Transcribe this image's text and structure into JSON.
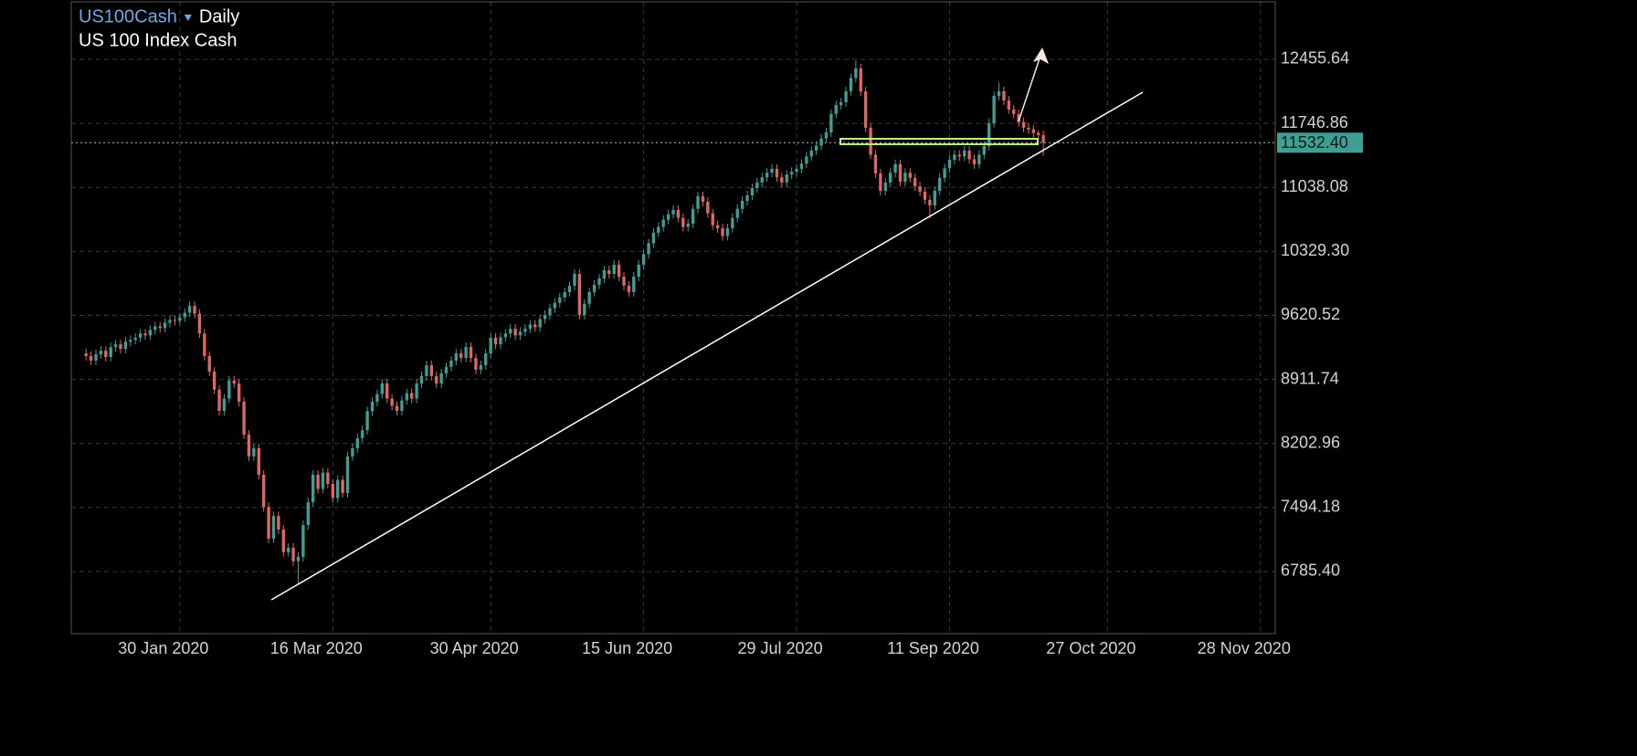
{
  "chart_data": {
    "type": "candlestick",
    "title": "US100Cash",
    "timeframe": "Daily",
    "subtitle": "US 100 Index Cash",
    "colors": {
      "up": "#3f9f94",
      "down": "#e06666"
    },
    "grid": true,
    "xlim": [
      -3,
      241
    ],
    "ylim": [
      6098,
      13092
    ],
    "xticks": [
      {
        "value": 19,
        "label": "30 Jan 2020"
      },
      {
        "value": 50,
        "label": "16 Mar 2020"
      },
      {
        "value": 82,
        "label": "30 Apr 2020"
      },
      {
        "value": 113,
        "label": "15 Jun 2020"
      },
      {
        "value": 144,
        "label": "29 Jul 2020"
      },
      {
        "value": 175,
        "label": "11 Sep 2020"
      },
      {
        "value": 207,
        "label": "27 Oct 2020"
      },
      {
        "value": 238,
        "label": "28 Nov 2020"
      }
    ],
    "yticks": [
      {
        "value": 6785.4,
        "label": "6785.40"
      },
      7494.18,
      8202.96,
      8911.74,
      9620.52,
      {
        "value": 10329.3,
        "label": "10329.30"
      },
      11038.08,
      11746.86,
      12455.64
    ],
    "current_price": {
      "value": 11532.4,
      "label": "11532.40"
    },
    "open": [
      9200,
      9171,
      9120,
      9190,
      9230,
      9160,
      9270,
      9300,
      9250,
      9330,
      9350,
      9374,
      9420,
      9400,
      9460,
      9500,
      9480,
      9540,
      9570,
      9560,
      9600,
      9650,
      9727,
      9640,
      9420,
      9171,
      9000,
      8800,
      8565,
      8700,
      8900,
      8868,
      8666,
      8300,
      8060,
      8150,
      7857,
      7500,
      7150,
      7400,
      7251,
      7000,
      7049,
      6900,
      6948,
      7300,
      7554,
      7857,
      7700,
      7880,
      7756,
      7600,
      7800,
      7655,
      8060,
      8150,
      8262,
      8350,
      8560,
      8666,
      8750,
      8868,
      8700,
      8620,
      8565,
      8680,
      8760,
      8700,
      8868,
      8950,
      9070,
      8950,
      8868,
      8980,
      9050,
      9120,
      9200,
      9150,
      9272,
      9150,
      9020,
      9070,
      9200,
      9374,
      9300,
      9380,
      9420,
      9474,
      9400,
      9440,
      9474,
      9520,
      9490,
      9580,
      9626,
      9700,
      9760,
      9820,
      9879,
      9950,
      10081,
      9626,
      9750,
      9879,
      9960,
      10030,
      10120,
      10080,
      10182,
      10050,
      9950,
      9879,
      10050,
      10182,
      10300,
      10420,
      10536,
      10600,
      10680,
      10740,
      10788,
      10700,
      10600,
      10637,
      10800,
      10940,
      10880,
      10750,
      10620,
      10586,
      10500,
      10586,
      10700,
      10800,
      10889,
      10950,
      11030,
      11092,
      11150,
      11200,
      11243,
      11150,
      11092,
      11180,
      11210,
      11243,
      11300,
      11380,
      11445,
      11500,
      11580,
      11647,
      11850,
      11950,
      11980,
      12102,
      12250,
      12355,
      12100,
      11698,
      11400,
      11193,
      11000,
      11092,
      11200,
      11294,
      11100,
      11200,
      11142,
      11050,
      10991,
      10900,
      10839,
      11000,
      11142,
      11250,
      11344,
      11400,
      11380,
      11445,
      11350,
      11294,
      11400,
      11496,
      11750,
      12051,
      12102,
      12000,
      11900,
      11850,
      11760,
      11698,
      11680,
      11640,
      11617
    ],
    "high": [
      9250,
      9221,
      9240,
      9280,
      9280,
      9320,
      9350,
      9350,
      9380,
      9400,
      9424,
      9470,
      9470,
      9510,
      9550,
      9550,
      9590,
      9620,
      9620,
      9650,
      9700,
      9777,
      9777,
      9690,
      9470,
      9221,
      9050,
      8850,
      8750,
      8950,
      8950,
      8918,
      8716,
      8350,
      8200,
      8200,
      7907,
      7550,
      7450,
      7450,
      7301,
      7099,
      7099,
      6998,
      7350,
      7604,
      7907,
      7907,
      7930,
      7930,
      7806,
      7850,
      7850,
      8110,
      8200,
      8312,
      8400,
      8610,
      8716,
      8800,
      8918,
      8918,
      8750,
      8670,
      8730,
      8810,
      8810,
      8918,
      9000,
      9120,
      9120,
      9000,
      9030,
      9100,
      9170,
      9250,
      9250,
      9322,
      9322,
      9200,
      9120,
      9250,
      9424,
      9424,
      9430,
      9470,
      9524,
      9524,
      9490,
      9524,
      9570,
      9570,
      9630,
      9676,
      9750,
      9810,
      9870,
      9929,
      10000,
      10131,
      10131,
      9800,
      9929,
      10010,
      10080,
      10170,
      10170,
      10232,
      10232,
      10100,
      10000,
      10100,
      10232,
      10350,
      10470,
      10586,
      10650,
      10730,
      10790,
      10838,
      10838,
      10750,
      10687,
      10850,
      10990,
      10990,
      10930,
      10800,
      10670,
      10636,
      10636,
      10750,
      10850,
      10939,
      11000,
      11080,
      11142,
      11200,
      11250,
      11293,
      11293,
      11200,
      11230,
      11260,
      11293,
      11350,
      11430,
      11495,
      11550,
      11630,
      11697,
      11900,
      12000,
      12030,
      12152,
      12300,
      12440,
      12405,
      12150,
      11748,
      11450,
      11243,
      11142,
      11250,
      11344,
      11344,
      11250,
      11250,
      11192,
      11100,
      11041,
      10950,
      11050,
      11192,
      11300,
      11394,
      11450,
      11450,
      11495,
      11495,
      11400,
      11450,
      11546,
      11800,
      12101,
      12200,
      12152,
      12050,
      11950,
      11900,
      11810,
      11748,
      11730,
      11667,
      11667
    ],
    "low": [
      9121,
      9070,
      9070,
      9140,
      9110,
      9110,
      9220,
      9200,
      9200,
      9280,
      9300,
      9324,
      9350,
      9350,
      9410,
      9430,
      9430,
      9490,
      9510,
      9510,
      9550,
      9600,
      9590,
      9370,
      9121,
      8950,
      8750,
      8515,
      8515,
      8650,
      8818,
      8616,
      8250,
      8010,
      8010,
      7807,
      7450,
      7100,
      7100,
      7201,
      6950,
      6950,
      6850,
      6644,
      6898,
      7250,
      7504,
      7650,
      7650,
      7706,
      7550,
      7550,
      7605,
      7605,
      8010,
      8100,
      8212,
      8300,
      8510,
      8616,
      8700,
      8650,
      8570,
      8515,
      8515,
      8630,
      8650,
      8650,
      8818,
      8900,
      8900,
      8818,
      8818,
      8930,
      9000,
      9070,
      9100,
      9100,
      9100,
      8970,
      8970,
      9020,
      9150,
      9250,
      9250,
      9330,
      9370,
      9350,
      9350,
      9390,
      9424,
      9440,
      9440,
      9530,
      9576,
      9650,
      9710,
      9770,
      9829,
      9900,
      9576,
      9576,
      9700,
      9829,
      9910,
      9980,
      10030,
      10030,
      10000,
      9900,
      9829,
      9829,
      10000,
      10132,
      10250,
      10370,
      10486,
      10550,
      10630,
      10690,
      10650,
      10550,
      10550,
      10587,
      10750,
      10830,
      10700,
      10570,
      10536,
      10450,
      10450,
      10536,
      10650,
      10750,
      10839,
      10900,
      10980,
      11042,
      11100,
      11150,
      11100,
      11042,
      11042,
      11130,
      11160,
      11193,
      11250,
      11330,
      11395,
      11450,
      11530,
      11597,
      11800,
      11900,
      11930,
      12052,
      12200,
      12050,
      11648,
      11350,
      11143,
      10950,
      10950,
      11042,
      11150,
      11050,
      11050,
      11092,
      11000,
      10941,
      10850,
      10700,
      10789,
      10950,
      11092,
      11200,
      11294,
      11330,
      11330,
      11300,
      11244,
      11244,
      11350,
      11446,
      11700,
      12001,
      11950,
      11850,
      11800,
      11710,
      11648,
      11630,
      11590,
      11567,
      11390
    ],
    "close": [
      9171,
      9120,
      9190,
      9230,
      9160,
      9270,
      9300,
      9250,
      9330,
      9350,
      9374,
      9420,
      9400,
      9460,
      9500,
      9480,
      9540,
      9570,
      9560,
      9600,
      9650,
      9727,
      9640,
      9420,
      9171,
      9000,
      8800,
      8565,
      8700,
      8900,
      8868,
      8666,
      8300,
      8060,
      8150,
      7857,
      7500,
      7150,
      7400,
      7251,
      7000,
      7049,
      6900,
      6948,
      7300,
      7554,
      7857,
      7700,
      7880,
      7756,
      7600,
      7800,
      7655,
      8060,
      8150,
      8262,
      8350,
      8560,
      8666,
      8750,
      8868,
      8700,
      8620,
      8565,
      8680,
      8760,
      8700,
      8868,
      8950,
      9070,
      8950,
      8868,
      8980,
      9050,
      9120,
      9200,
      9150,
      9272,
      9150,
      9020,
      9070,
      9200,
      9374,
      9300,
      9380,
      9420,
      9474,
      9400,
      9440,
      9474,
      9520,
      9490,
      9580,
      9626,
      9700,
      9760,
      9820,
      9879,
      9950,
      10081,
      9626,
      9750,
      9879,
      9960,
      10030,
      10120,
      10080,
      10182,
      10050,
      9950,
      9879,
      10050,
      10182,
      10300,
      10420,
      10536,
      10600,
      10680,
      10740,
      10788,
      10700,
      10600,
      10637,
      10800,
      10940,
      10880,
      10750,
      10620,
      10586,
      10500,
      10586,
      10700,
      10800,
      10889,
      10950,
      11030,
      11092,
      11150,
      11200,
      11243,
      11150,
      11092,
      11180,
      11210,
      11243,
      11300,
      11380,
      11445,
      11500,
      11580,
      11647,
      11850,
      11950,
      11980,
      12102,
      12250,
      12355,
      12100,
      11698,
      11400,
      11193,
      11000,
      11092,
      11200,
      11294,
      11100,
      11200,
      11142,
      11050,
      10991,
      10900,
      10839,
      11000,
      11142,
      11250,
      11344,
      11400,
      11380,
      11445,
      11350,
      11294,
      11400,
      11496,
      11750,
      12051,
      12102,
      12000,
      11900,
      11850,
      11760,
      11698,
      11680,
      11640,
      11617,
      11532.4
    ]
  }
}
